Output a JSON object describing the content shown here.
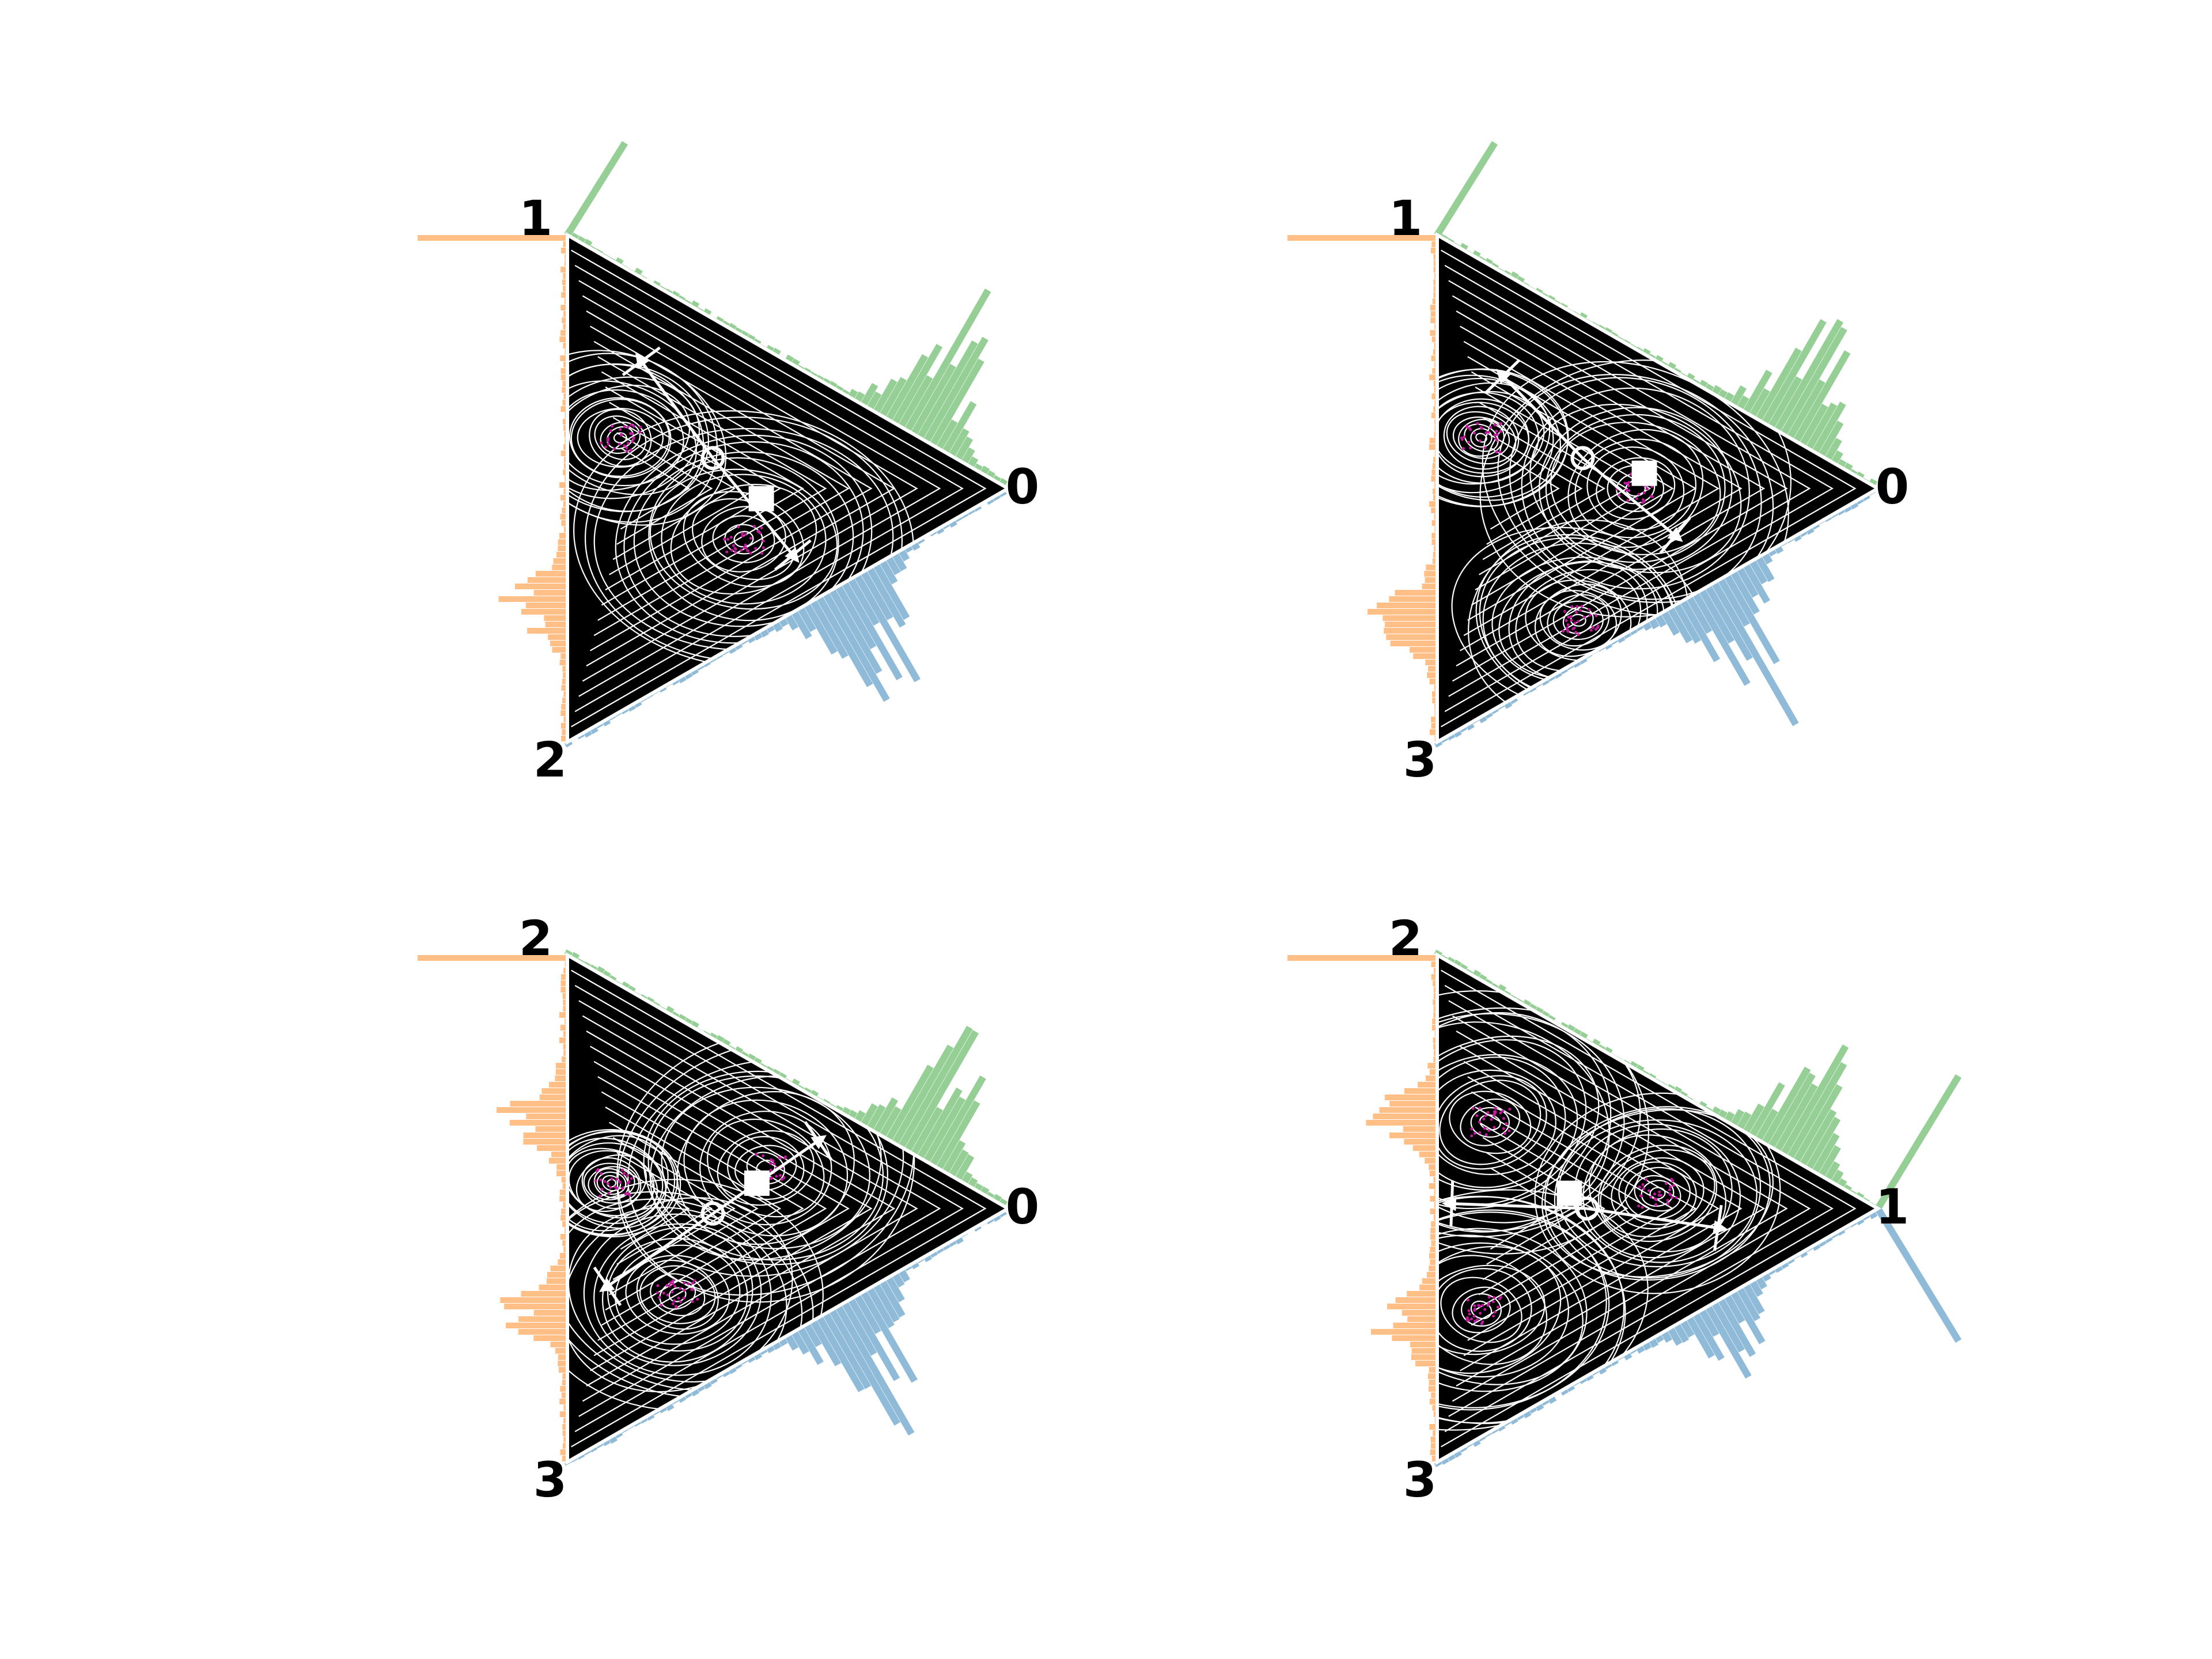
{
  "colors": {
    "background": "#000000",
    "contour": "#ffffff",
    "hist_edge_a": "#95cf95",
    "hist_edge_b": "#8fbbd9",
    "hist_left": "#ffbf86",
    "points": "#c2189c"
  },
  "chart_data": [
    {
      "type": "ternary-density",
      "panel": "top-left",
      "vertices": {
        "top": "1",
        "right": "0",
        "bottom": "2"
      },
      "grid": false,
      "legend": "none",
      "marker_circle": "o",
      "marker_square": "■"
    },
    {
      "type": "ternary-density",
      "panel": "top-right",
      "vertices": {
        "top": "1",
        "right": "0",
        "bottom": "3"
      },
      "grid": false,
      "legend": "none",
      "marker_circle": "o",
      "marker_square": "■"
    },
    {
      "type": "ternary-density",
      "panel": "bottom-left",
      "vertices": {
        "top": "2",
        "right": "0",
        "bottom": "3"
      },
      "grid": false,
      "legend": "none",
      "marker_circle": "o",
      "marker_square": "■"
    },
    {
      "type": "ternary-density",
      "panel": "bottom-right",
      "vertices": {
        "top": "2",
        "right": "1",
        "bottom": "3"
      },
      "grid": false,
      "legend": "none",
      "marker_circle": "o",
      "marker_square": "■"
    }
  ]
}
